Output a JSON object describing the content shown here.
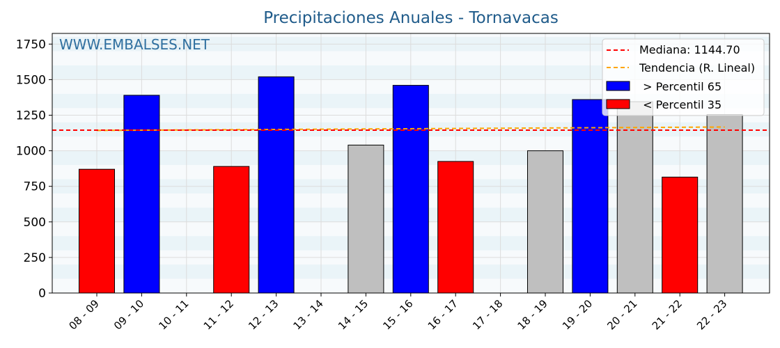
{
  "chart_data": {
    "type": "bar",
    "title": "Precipitaciones Anuales - Tornavacas",
    "watermark": "WWW.EMBALSES.NET",
    "xlabel": "",
    "ylabel": "",
    "ylim": [
      0,
      1825
    ],
    "yticks": [
      0,
      250,
      500,
      750,
      1000,
      1250,
      1500,
      1750
    ],
    "grid": true,
    "legend_position": "top-right",
    "categories": [
      "08 - 09",
      "09 - 10",
      "10 - 11",
      "11 - 12",
      "12 - 13",
      "13 - 14",
      "14 - 15",
      "15 - 16",
      "16 - 17",
      "17 - 18",
      "18 - 19",
      "19 - 20",
      "20 - 21",
      "21 - 22",
      "22 - 23"
    ],
    "values": [
      870,
      1390,
      null,
      890,
      1520,
      null,
      1040,
      1460,
      925,
      null,
      1000,
      1360,
      1345,
      815,
      1255
    ],
    "bar_classes": [
      "low",
      "high",
      null,
      "low",
      "high",
      null,
      "mid",
      "high",
      "low",
      null,
      "mid",
      "high",
      "mid",
      "low",
      "mid"
    ],
    "median": 1144.7,
    "trend": [
      1143,
      1167
    ],
    "colors": {
      "high": "#0000ff",
      "low": "#ff0000",
      "mid": "#bfbfbf",
      "median": "#ff0000",
      "trend": "#ffa500"
    },
    "legend": {
      "median_label": "Mediana: 1144.70",
      "trend_label": "Tendencia (R. Lineal)",
      "high_label": " > Percentil 65",
      "low_label": " < Percentil 35"
    }
  }
}
